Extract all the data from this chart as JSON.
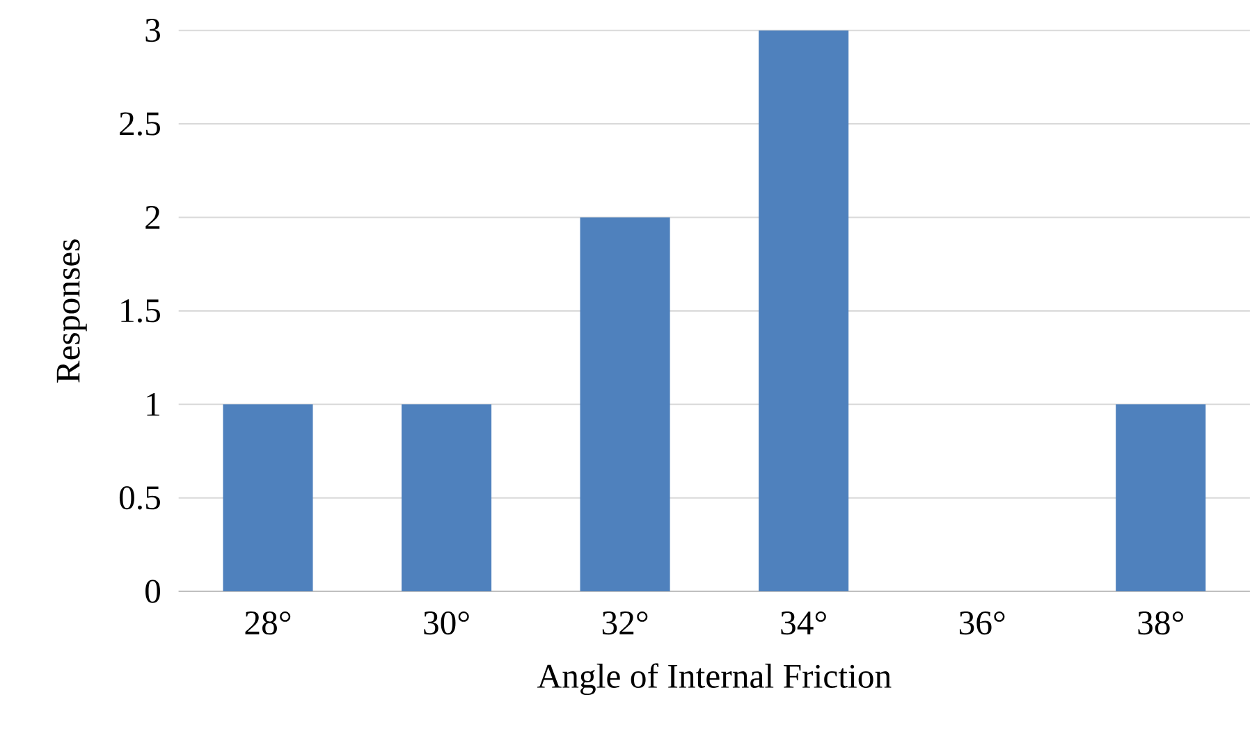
{
  "chart_data": {
    "type": "bar",
    "xlabel": "Angle of Internal Friction",
    "ylabel": "Responses",
    "categories": [
      "28°",
      "30°",
      "32°",
      "34°",
      "36°",
      "38°"
    ],
    "values": [
      1,
      1,
      2,
      3,
      0,
      1
    ],
    "color": "#4f81bd",
    "ylim": [
      0,
      3
    ],
    "yticks": [
      0,
      0.5,
      1,
      1.5,
      2,
      2.5,
      3
    ],
    "grid": "y"
  }
}
